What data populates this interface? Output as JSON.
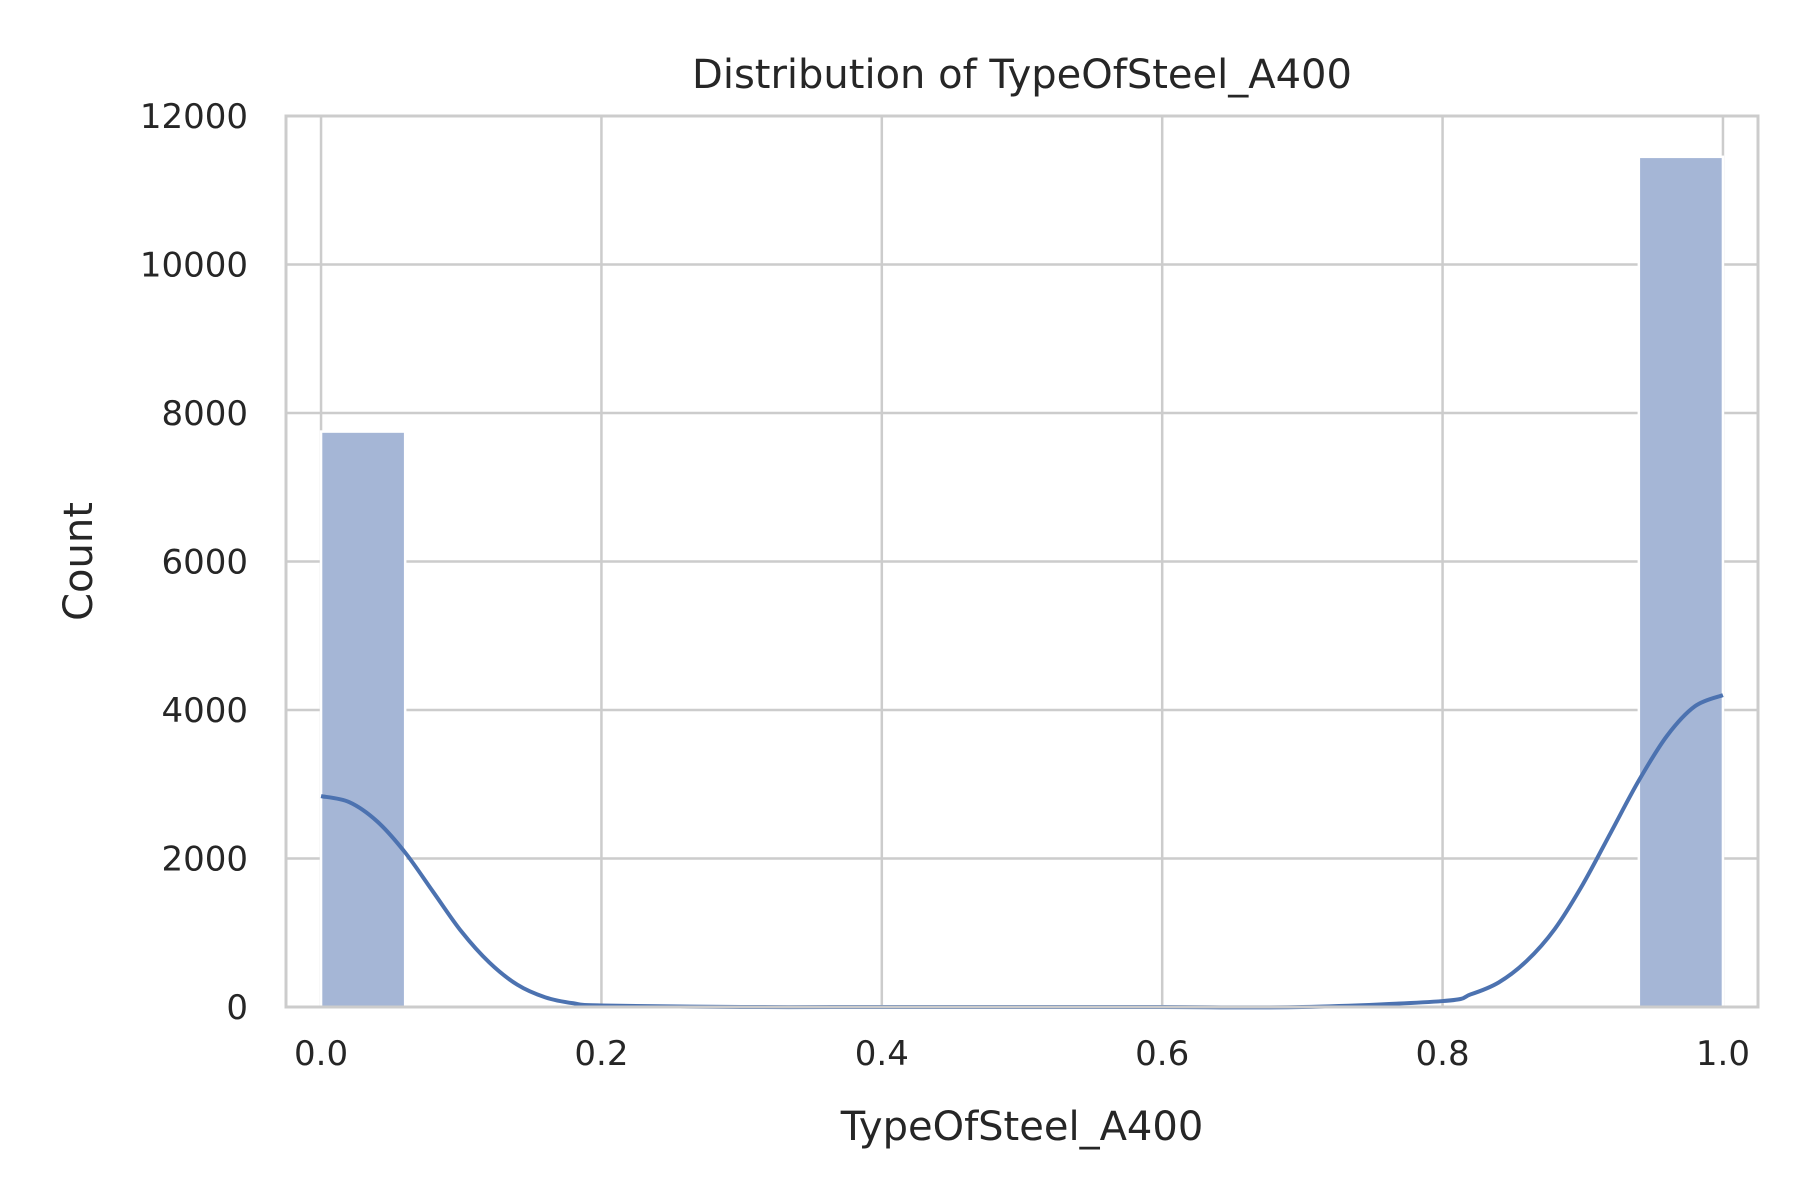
{
  "chart_data": {
    "type": "bar",
    "title": "Distribution of TypeOfSteel_A400",
    "xlabel": "TypeOfSteel_A400",
    "ylabel": "Count",
    "xlim": [
      -0.025,
      1.025
    ],
    "ylim": [
      0,
      12000
    ],
    "xticks": [
      0.0,
      0.2,
      0.4,
      0.6,
      0.8,
      1.0
    ],
    "xtick_labels": [
      "0.0",
      "0.2",
      "0.4",
      "0.6",
      "0.8",
      "1.0"
    ],
    "yticks": [
      0,
      2000,
      4000,
      6000,
      8000,
      10000,
      12000
    ],
    "ytick_labels": [
      "0",
      "2000",
      "4000",
      "6000",
      "8000",
      "10000",
      "12000"
    ],
    "grid": true,
    "bins": [
      {
        "x0": 0.0,
        "x1": 0.06,
        "count": 7750
      },
      {
        "x0": 0.94,
        "x1": 1.0,
        "count": 11450
      }
    ],
    "kde": {
      "x": [
        0.0,
        0.02,
        0.04,
        0.06,
        0.08,
        0.1,
        0.12,
        0.14,
        0.16,
        0.18,
        0.2,
        0.3,
        0.4,
        0.5,
        0.6,
        0.7,
        0.8,
        0.82,
        0.84,
        0.86,
        0.88,
        0.9,
        0.92,
        0.94,
        0.96,
        0.98,
        1.0
      ],
      "y": [
        2840,
        2760,
        2500,
        2080,
        1550,
        1020,
        600,
        300,
        130,
        50,
        20,
        0,
        0,
        0,
        0,
        0,
        80,
        170,
        330,
        620,
        1050,
        1650,
        2350,
        3050,
        3650,
        4050,
        4200
      ]
    },
    "colors": {
      "bar": "#a5b6d6",
      "kde": "#4c72b0",
      "grid": "#cccccc",
      "axes": "#cccccc",
      "text": "#262626"
    }
  }
}
